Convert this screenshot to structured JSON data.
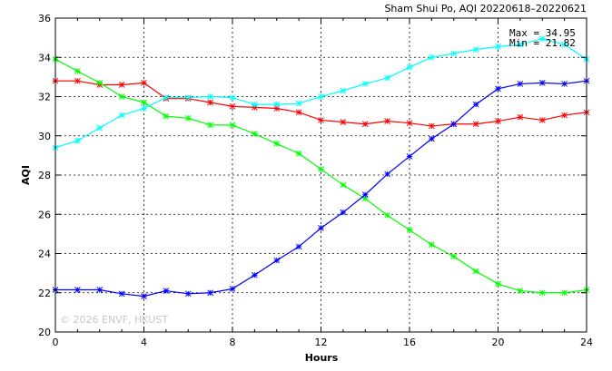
{
  "chart_data": {
    "type": "line",
    "title": "Sham Shui Po, AQI 20220618–20220621",
    "xlabel": "Hours",
    "ylabel": "AQI",
    "xlim": [
      0,
      24
    ],
    "ylim": [
      20,
      36
    ],
    "xticks": [
      0,
      4,
      8,
      12,
      16,
      20,
      24
    ],
    "yticks": [
      20,
      22,
      24,
      26,
      28,
      30,
      32,
      34,
      36
    ],
    "grid": true,
    "stats": {
      "max_label": "Max = 34.95",
      "min_label": "Min = 21.82"
    },
    "watermark": "© 2026 ENVF, HKUST",
    "x": [
      0,
      1,
      2,
      3,
      4,
      5,
      6,
      7,
      8,
      9,
      10,
      11,
      12,
      13,
      14,
      15,
      16,
      17,
      18,
      19,
      20,
      21,
      22,
      23,
      24
    ],
    "series": [
      {
        "color": "#ff0000",
        "values": [
          32.8,
          32.8,
          32.6,
          32.6,
          32.7,
          31.9,
          31.9,
          31.7,
          31.5,
          31.45,
          31.4,
          31.2,
          30.8,
          30.7,
          30.6,
          30.75,
          30.65,
          30.5,
          30.6,
          30.6,
          30.75,
          30.95,
          30.8,
          31.05,
          31.2
        ]
      },
      {
        "color": "#00ff00",
        "values": [
          33.9,
          33.3,
          32.7,
          32.0,
          31.7,
          31.0,
          30.9,
          30.55,
          30.55,
          30.1,
          29.6,
          29.1,
          28.3,
          27.5,
          26.8,
          25.95,
          25.2,
          24.45,
          23.85,
          23.1,
          22.45,
          22.1,
          22.0,
          22.0,
          22.15
        ]
      },
      {
        "color": "#0000ff",
        "values": [
          22.15,
          22.15,
          22.15,
          21.95,
          21.82,
          22.1,
          21.95,
          22.0,
          22.2,
          22.9,
          23.65,
          24.35,
          25.3,
          26.1,
          27.0,
          28.05,
          28.95,
          29.85,
          30.6,
          31.6,
          32.4,
          32.65,
          32.7,
          32.65,
          32.8
        ]
      },
      {
        "color": "#00ffff",
        "values": [
          29.4,
          29.75,
          30.4,
          31.05,
          31.4,
          31.95,
          31.95,
          32.0,
          31.95,
          31.6,
          31.6,
          31.65,
          32.0,
          32.3,
          32.65,
          32.95,
          33.5,
          34.0,
          34.2,
          34.4,
          34.55,
          34.65,
          34.95,
          34.65,
          33.9
        ]
      }
    ]
  }
}
